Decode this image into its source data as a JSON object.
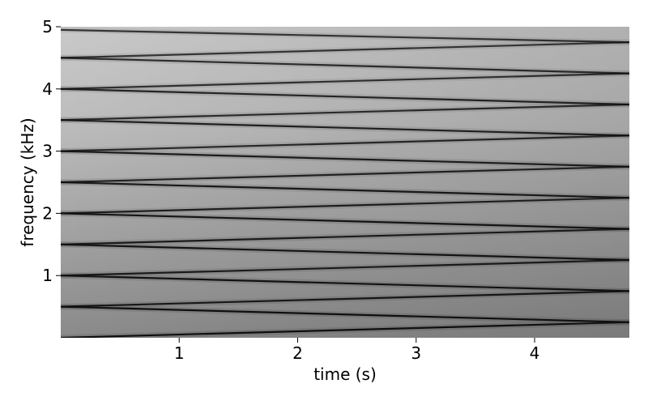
{
  "chart_data": {
    "type": "heatmap",
    "subtype": "spectrogram",
    "colormap": "grayscale (dark = high intensity)",
    "xlabel": "time (s)",
    "ylabel": "frequency (kHz)",
    "xlim": [
      0,
      4.8
    ],
    "ylim": [
      0,
      5
    ],
    "xticks": [
      1,
      2,
      3,
      4
    ],
    "yticks": [
      1,
      2,
      3,
      4,
      5
    ],
    "grid": false,
    "lines": [
      {
        "start_khz": 0.0,
        "end_khz": 0.25,
        "strength": 1.0
      },
      {
        "start_khz": 0.5,
        "end_khz": 0.25,
        "strength": 1.0
      },
      {
        "start_khz": 0.5,
        "end_khz": 0.75,
        "strength": 0.85
      },
      {
        "start_khz": 1.0,
        "end_khz": 0.75,
        "strength": 0.95
      },
      {
        "start_khz": 1.0,
        "end_khz": 1.25,
        "strength": 0.8
      },
      {
        "start_khz": 1.5,
        "end_khz": 1.25,
        "strength": 0.9
      },
      {
        "start_khz": 1.5,
        "end_khz": 1.75,
        "strength": 0.8
      },
      {
        "start_khz": 2.0,
        "end_khz": 1.75,
        "strength": 0.9
      },
      {
        "start_khz": 2.0,
        "end_khz": 2.25,
        "strength": 0.75
      },
      {
        "start_khz": 2.5,
        "end_khz": 2.25,
        "strength": 0.85
      },
      {
        "start_khz": 2.5,
        "end_khz": 2.75,
        "strength": 0.7
      },
      {
        "start_khz": 3.0,
        "end_khz": 2.75,
        "strength": 0.8
      },
      {
        "start_khz": 3.0,
        "end_khz": 3.25,
        "strength": 0.65
      },
      {
        "start_khz": 3.5,
        "end_khz": 3.25,
        "strength": 0.75
      },
      {
        "start_khz": 3.5,
        "end_khz": 3.75,
        "strength": 0.6
      },
      {
        "start_khz": 4.0,
        "end_khz": 3.75,
        "strength": 0.7
      },
      {
        "start_khz": 4.0,
        "end_khz": 4.25,
        "strength": 0.55
      },
      {
        "start_khz": 4.5,
        "end_khz": 4.25,
        "strength": 0.6
      },
      {
        "start_khz": 4.5,
        "end_khz": 4.75,
        "strength": 0.5
      },
      {
        "start_khz": 4.95,
        "end_khz": 4.75,
        "strength": 0.5
      }
    ]
  }
}
